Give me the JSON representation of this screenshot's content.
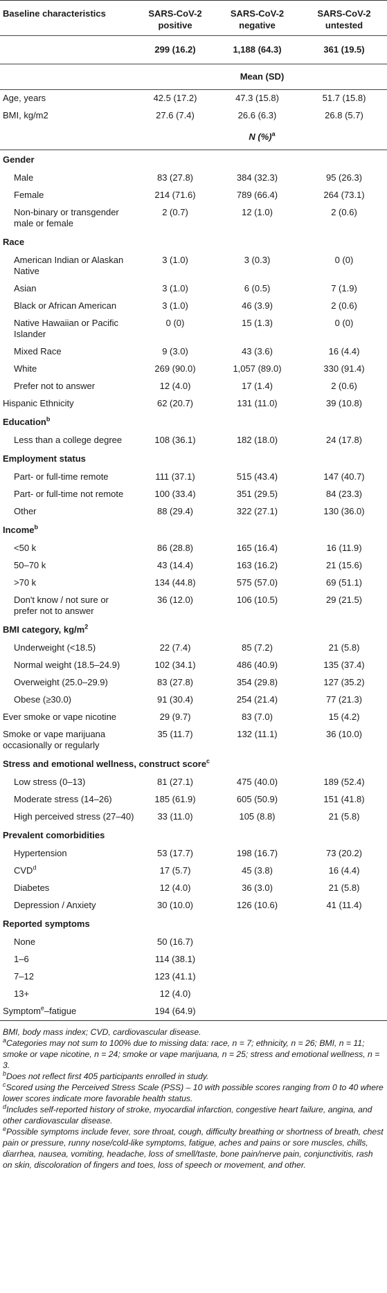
{
  "header": {
    "col0": "Baseline characteristics",
    "col1": "SARS-CoV-2 positive",
    "col2": "SARS-CoV-2 negative",
    "col3": "SARS-CoV-2 untested",
    "n1": "299 (16.2)",
    "n2": "1,188 (64.3)",
    "n3": "361 (19.5)",
    "mean_sd": "Mean (SD)",
    "n_pct": "N (%)",
    "n_pct_sup": "a"
  },
  "continuous": [
    {
      "label": "Age, years",
      "v": [
        "42.5 (17.2)",
        "47.3 (15.8)",
        "51.7 (15.8)"
      ]
    },
    {
      "label": "BMI, kg/m2",
      "v": [
        "27.6 (7.4)",
        "26.6 (6.3)",
        "26.8 (5.7)"
      ]
    }
  ],
  "sections": {
    "gender": {
      "title": "Gender",
      "rows": [
        {
          "label": "Male",
          "v": [
            "83 (27.8)",
            "384 (32.3)",
            "95 (26.3)"
          ]
        },
        {
          "label": "Female",
          "v": [
            "214 (71.6)",
            "789 (66.4)",
            "264 (73.1)"
          ]
        },
        {
          "label": "Non-binary or transgender male or female",
          "v": [
            "2 (0.7)",
            "12 (1.0)",
            "2 (0.6)"
          ]
        }
      ]
    },
    "race": {
      "title": "Race",
      "rows": [
        {
          "label": "American Indian or Alaskan Native",
          "v": [
            "3 (1.0)",
            "3 (0.3)",
            "0 (0)"
          ]
        },
        {
          "label": "Asian",
          "v": [
            "3 (1.0)",
            "6 (0.5)",
            "7 (1.9)"
          ]
        },
        {
          "label": "Black or African American",
          "v": [
            "3 (1.0)",
            "46 (3.9)",
            "2 (0.6)"
          ]
        },
        {
          "label": "Native Hawaiian or Pacific Islander",
          "v": [
            "0 (0)",
            "15 (1.3)",
            "0 (0)"
          ]
        },
        {
          "label": "Mixed Race",
          "v": [
            "9 (3.0)",
            "43 (3.6)",
            "16 (4.4)"
          ]
        },
        {
          "label": "White",
          "v": [
            "269 (90.0)",
            "1,057 (89.0)",
            "330 (91.4)"
          ]
        },
        {
          "label": "Prefer not to answer",
          "v": [
            "12 (4.0)",
            "17 (1.4)",
            "2 (0.6)"
          ]
        }
      ]
    },
    "hispanic": {
      "label": "Hispanic Ethnicity",
      "v": [
        "62 (20.7)",
        "131 (11.0)",
        "39 (10.8)"
      ]
    },
    "education": {
      "title": "Education",
      "sup": "b",
      "rows": [
        {
          "label": "Less than a college degree",
          "v": [
            "108 (36.1)",
            "182 (18.0)",
            "24 (17.8)"
          ]
        }
      ]
    },
    "employment": {
      "title": "Employment status",
      "rows": [
        {
          "label": "Part- or full-time remote",
          "v": [
            "111 (37.1)",
            "515 (43.4)",
            "147 (40.7)"
          ]
        },
        {
          "label": "Part- or full-time not remote",
          "v": [
            "100 (33.4)",
            "351 (29.5)",
            "84 (23.3)"
          ]
        },
        {
          "label": "Other",
          "v": [
            "88 (29.4)",
            "322 (27.1)",
            "130 (36.0)"
          ]
        }
      ]
    },
    "income": {
      "title": "Income",
      "sup": "b",
      "rows": [
        {
          "label": "<50 k",
          "v": [
            "86 (28.8)",
            "165 (16.4)",
            "16 (11.9)"
          ]
        },
        {
          "label": "50–70 k",
          "v": [
            "43 (14.4)",
            "163 (16.2)",
            "21 (15.6)"
          ]
        },
        {
          "label": ">70 k",
          "v": [
            "134 (44.8)",
            "575 (57.0)",
            "69 (51.1)"
          ]
        },
        {
          "label": "Don't know / not sure or prefer not to answer",
          "v": [
            "36 (12.0)",
            "106 (10.5)",
            "29 (21.5)"
          ]
        }
      ]
    },
    "bmi": {
      "title": "BMI category, kg/m",
      "sup": "2",
      "rows": [
        {
          "label": "Underweight (<18.5)",
          "v": [
            "22 (7.4)",
            "85 (7.2)",
            "21 (5.8)"
          ]
        },
        {
          "label": "Normal weight (18.5–24.9)",
          "v": [
            "102 (34.1)",
            "486 (40.9)",
            "135 (37.4)"
          ]
        },
        {
          "label": "Overweight (25.0–29.9)",
          "v": [
            "83 (27.8)",
            "354 (29.8)",
            "127 (35.2)"
          ]
        },
        {
          "label": "Obese (≥30.0)",
          "v": [
            "91 (30.4)",
            "254 (21.4)",
            "77 (21.3)"
          ]
        }
      ]
    },
    "smoke_nicotine": {
      "label": "Ever smoke or vape nicotine",
      "v": [
        "29 (9.7)",
        "83 (7.0)",
        "15 (4.2)"
      ]
    },
    "smoke_marijuana": {
      "label": "Smoke or vape marijuana occasionally or regularly",
      "v": [
        "35 (11.7)",
        "132 (11.1)",
        "36 (10.0)"
      ]
    },
    "stress": {
      "title": "Stress and emotional wellness, construct score",
      "sup": "c",
      "rows": [
        {
          "label": "Low stress (0–13)",
          "v": [
            "81 (27.1)",
            "475 (40.0)",
            "189 (52.4)"
          ]
        },
        {
          "label": "Moderate stress (14–26)",
          "v": [
            "185 (61.9)",
            "605 (50.9)",
            "151 (41.8)"
          ]
        },
        {
          "label": "High perceived stress (27–40)",
          "v": [
            "33 (11.0)",
            "105 (8.8)",
            "21 (5.8)"
          ]
        }
      ]
    },
    "comorbid": {
      "title": "Prevalent comorbidities",
      "rows": [
        {
          "label": "Hypertension",
          "v": [
            "53 (17.7)",
            "198 (16.7)",
            "73 (20.2)"
          ]
        },
        {
          "label": "CVD",
          "sup": "d",
          "v": [
            "17 (5.7)",
            "45 (3.8)",
            "16 (4.4)"
          ]
        },
        {
          "label": "Diabetes",
          "v": [
            "12 (4.0)",
            "36 (3.0)",
            "21 (5.8)"
          ]
        },
        {
          "label": "Depression / Anxiety",
          "v": [
            "30 (10.0)",
            "126 (10.6)",
            "41 (11.4)"
          ]
        }
      ]
    },
    "symptoms": {
      "title": "Reported symptoms",
      "rows": [
        {
          "label": "None",
          "v": [
            "50 (16.7)",
            "",
            ""
          ]
        },
        {
          "label": "1–6",
          "v": [
            "114 (38.1)",
            "",
            ""
          ]
        },
        {
          "label": "7–12",
          "v": [
            "123 (41.1)",
            "",
            ""
          ]
        },
        {
          "label": "13+",
          "v": [
            "12 (4.0)",
            "",
            ""
          ]
        }
      ]
    },
    "fatigue": {
      "label_a": "Symptom",
      "sup": "e",
      "label_b": "–fatigue",
      "v": [
        "194 (64.9)",
        "",
        ""
      ]
    }
  },
  "notes": {
    "abbr": "BMI, body mass index; CVD, cardiovascular disease.",
    "a": "Categories may not sum to 100% due to missing data: race, n = 7; ethnicity, n = 26; BMI, n = 11; smoke or vape nicotine, n = 24; smoke or vape marijuana, n = 25; stress and emotional wellness, n = 3.",
    "b": "Does not reflect first 405 participants enrolled in study.",
    "c": "Scored using the Perceived Stress Scale (PSS) – 10 with possible scores ranging from 0 to 40 where lower scores indicate more favorable health status.",
    "d": "Includes self-reported history of stroke, myocardial infarction, congestive heart failure, angina, and other cardiovascular disease.",
    "e": "Possible symptoms include fever, sore throat, cough, difficulty breathing or shortness of breath, chest pain or pressure, runny nose/cold-like symptoms, fatigue, aches and pains or sore muscles, chills, diarrhea, nausea, vomiting, headache, loss of smell/taste, bone pain/nerve pain, conjunctivitis, rash on skin, discoloration of fingers and toes, loss of speech or movement, and other.",
    "marks": {
      "a": "a",
      "b": "b",
      "c": "c",
      "d": "d",
      "e": "e"
    }
  }
}
